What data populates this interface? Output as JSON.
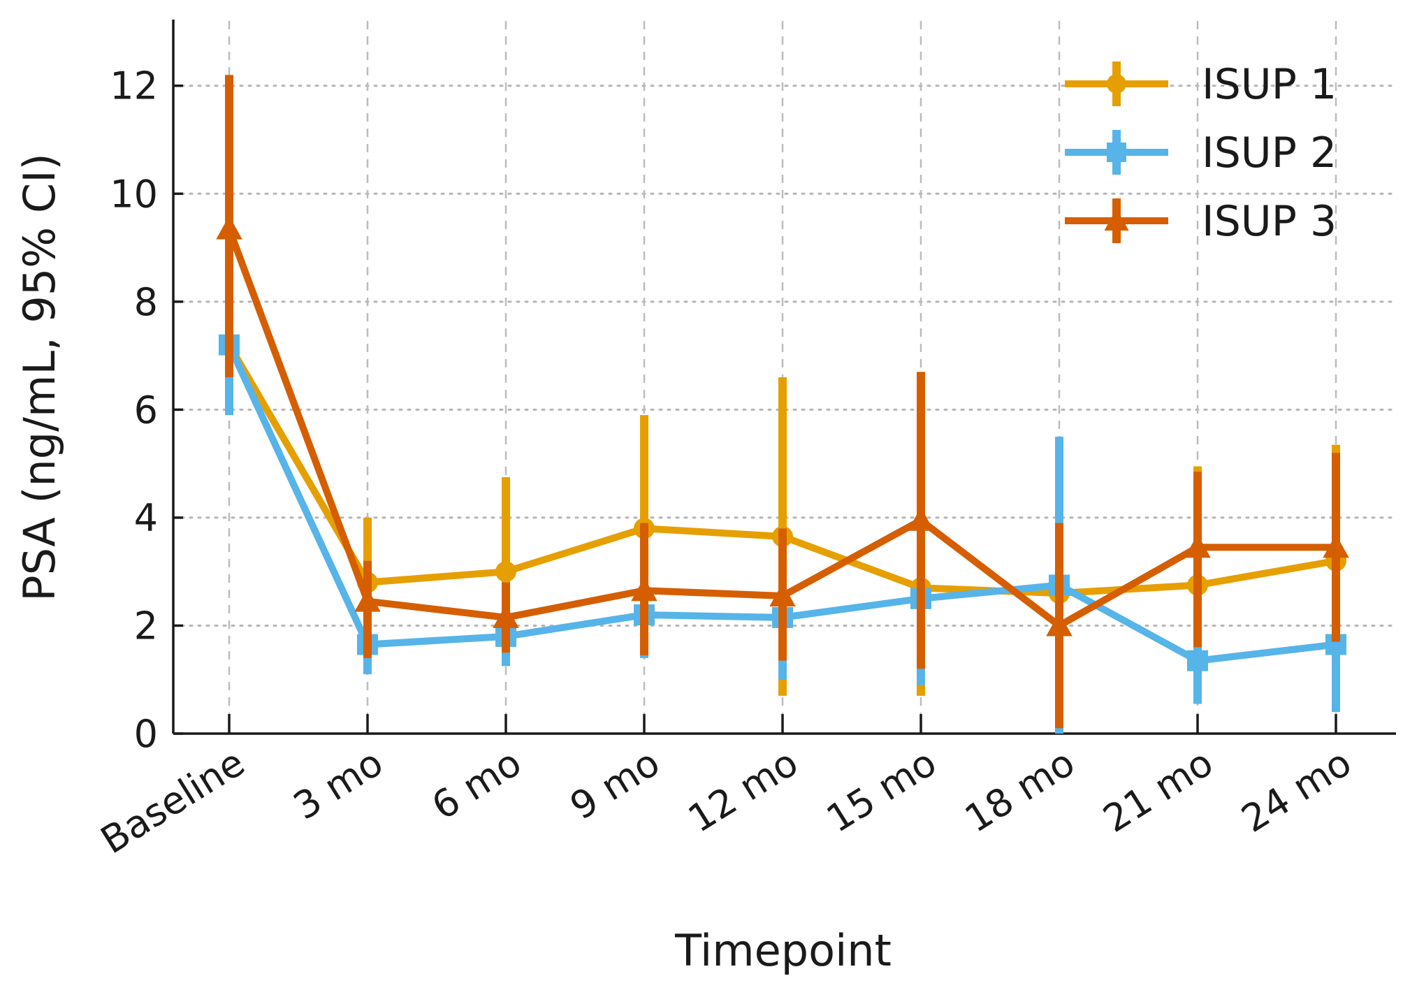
{
  "chart_data": {
    "type": "line",
    "xlabel": "Timepoint",
    "ylabel": "PSA (ng/mL, 95% CI)",
    "categories": [
      "Baseline",
      "3 mo",
      "6 mo",
      "9 mo",
      "12 mo",
      "15 mo",
      "18 mo",
      "21 mo",
      "24 mo"
    ],
    "ylim": [
      0,
      13.2
    ],
    "yticks": [
      0,
      2,
      4,
      6,
      8,
      10,
      12
    ],
    "grid": true,
    "legend_position": "top-right",
    "series": [
      {
        "name": "ISUP 1",
        "color": "#e69f00",
        "marker": "circle",
        "values": [
          7.2,
          2.8,
          3.0,
          3.8,
          3.65,
          2.7,
          2.6,
          2.75,
          3.2
        ],
        "ci_low": [
          6.5,
          1.5,
          1.3,
          1.5,
          0.7,
          0.7,
          0.0,
          0.7,
          1.0
        ],
        "ci_high": [
          8.0,
          4.0,
          4.75,
          5.9,
          6.6,
          4.0,
          5.0,
          4.95,
          5.35
        ]
      },
      {
        "name": "ISUP 2",
        "color": "#56b4e9",
        "marker": "square",
        "values": [
          7.2,
          1.65,
          1.8,
          2.2,
          2.15,
          2.5,
          2.75,
          1.35,
          1.65
        ],
        "ci_low": [
          5.9,
          1.1,
          1.25,
          1.4,
          1.0,
          0.9,
          0.0,
          0.55,
          0.4
        ],
        "ci_high": [
          7.4,
          2.3,
          2.3,
          2.6,
          3.2,
          3.7,
          5.5,
          2.0,
          3.3
        ]
      },
      {
        "name": "ISUP 3",
        "color": "#d55e00",
        "marker": "triangle",
        "values": [
          9.35,
          2.45,
          2.15,
          2.65,
          2.55,
          3.95,
          2.0,
          3.45,
          3.45
        ],
        "ci_low": [
          6.6,
          1.4,
          1.5,
          1.45,
          1.35,
          1.2,
          0.1,
          1.6,
          1.7
        ],
        "ci_high": [
          12.2,
          3.2,
          2.8,
          3.9,
          3.8,
          6.7,
          3.9,
          4.85,
          5.2
        ]
      }
    ]
  }
}
